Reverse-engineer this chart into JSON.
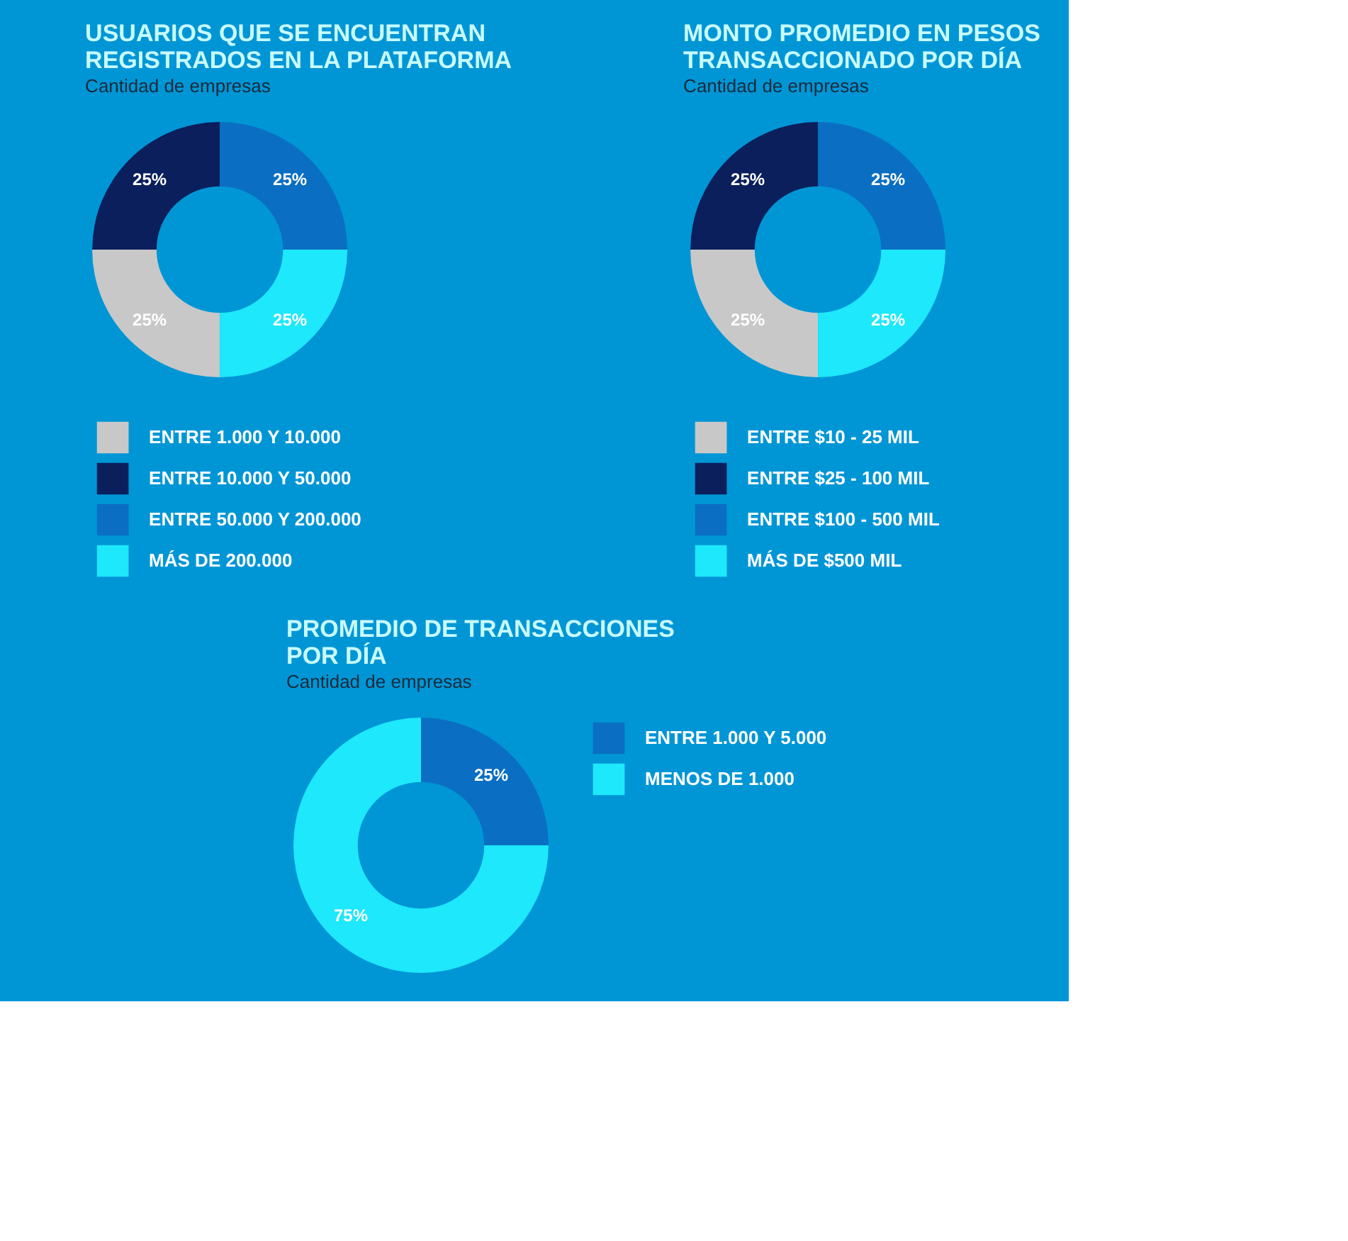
{
  "chart_data": [
    {
      "type": "donut",
      "title": "USUARIOS QUE SE ENCUENTRAN REGISTRADOS EN LA PLATAFORMA",
      "subtitle": "Cantidad de empresas",
      "categories": [
        "ENTRE 1.000 Y 10.000",
        "ENTRE 10.000 Y 50.000",
        "ENTRE 50.000 Y 200.000",
        "MÁS DE 200.000"
      ],
      "values": [
        25,
        25,
        25,
        25
      ],
      "colors": [
        "#c8c8c8",
        "#0a1f5c",
        "#0a6fc2",
        "#1ee8fb"
      ],
      "value_labels": [
        "25%",
        "25%",
        "25%",
        "25%"
      ],
      "legend": "bottom"
    },
    {
      "type": "donut",
      "title": "MONTO PROMEDIO EN PESOS TRANSACCIONADO POR DÍA",
      "subtitle": "Cantidad de empresas",
      "categories": [
        "ENTRE $10 - 25 MIL",
        "ENTRE $25 - 100 MIL",
        "ENTRE $100 - 500 MIL",
        "MÁS DE $500 MIL"
      ],
      "values": [
        25,
        25,
        25,
        25
      ],
      "colors": [
        "#c8c8c8",
        "#0a1f5c",
        "#0a6fc2",
        "#1ee8fb"
      ],
      "value_labels": [
        "25%",
        "25%",
        "25%",
        "25%"
      ],
      "legend": "bottom"
    },
    {
      "type": "donut",
      "title": "PROMEDIO DE TRANSACCIONES POR DÍA",
      "subtitle": "Cantidad de empresas",
      "categories": [
        "ENTRE 1.000 Y 5.000",
        "MENOS DE 1.000"
      ],
      "values": [
        25,
        75
      ],
      "colors": [
        "#0a6fc2",
        "#1ee8fb"
      ],
      "value_labels": [
        "25%",
        "75%"
      ],
      "legend": "right"
    }
  ]
}
